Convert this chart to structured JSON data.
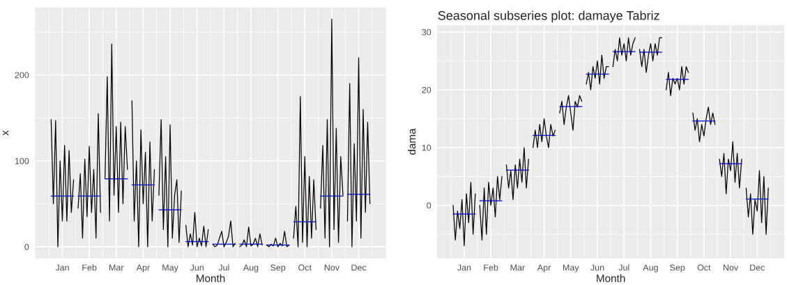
{
  "chart_data": [
    {
      "type": "line",
      "xlabel": "Month",
      "ylabel": "x",
      "ylim": [
        -13,
        278
      ],
      "yticks": [
        0,
        100,
        200
      ],
      "grid": true,
      "legend": false,
      "categories": [
        null,
        null,
        null,
        null,
        null,
        "Jan",
        null,
        null,
        null,
        null,
        null,
        null,
        null,
        null,
        null,
        null,
        null,
        "Feb",
        null,
        null,
        null,
        null,
        null,
        null,
        null,
        null,
        null,
        null,
        null,
        "Mar",
        null,
        null,
        null,
        null,
        null,
        null,
        null,
        null,
        null,
        null,
        null,
        "Apr",
        null,
        null,
        null,
        null,
        null,
        null,
        null,
        null,
        null,
        null,
        null,
        "May",
        null,
        null,
        null,
        null,
        null,
        null,
        null,
        null,
        null,
        null,
        null,
        "Jun",
        null,
        null,
        null,
        null,
        null,
        null,
        null,
        null,
        null,
        null,
        null,
        "Jul",
        null,
        null,
        null,
        null,
        null,
        null,
        null,
        null,
        null,
        null,
        null,
        "Aug",
        null,
        null,
        null,
        null,
        null,
        null,
        null,
        null,
        null,
        null,
        null,
        "Sep",
        null,
        null,
        null,
        null,
        null,
        null,
        null,
        null,
        null,
        null,
        null,
        "Oct",
        null,
        null,
        null,
        null,
        null,
        null,
        null,
        null,
        null,
        null,
        null,
        "Nov",
        null,
        null,
        null,
        null,
        null,
        null,
        null,
        null,
        null,
        null,
        null,
        "Dec",
        null,
        null,
        null,
        null,
        null
      ],
      "series": [
        {
          "color": "#000000",
          "values": [
            148,
            50,
            147,
            0,
            100,
            30,
            118,
            30,
            112,
            40,
            78,
            null,
            45,
            85,
            10,
            102,
            35,
            117,
            40,
            90,
            10,
            155,
            40,
            null,
            80,
            198,
            30,
            236,
            60,
            140,
            40,
            145,
            50,
            140,
            90,
            null,
            170,
            30,
            100,
            0,
            136,
            50,
            110,
            0,
            122,
            30,
            90,
            null,
            60,
            148,
            20,
            105,
            0,
            142,
            10,
            60,
            78,
            5,
            65,
            null,
            25,
            0,
            15,
            2,
            40,
            0,
            10,
            1,
            24,
            0,
            20,
            null,
            3,
            0,
            2,
            10,
            18,
            0,
            5,
            12,
            30,
            0,
            4,
            null,
            0,
            2,
            8,
            0,
            23,
            1,
            3,
            10,
            0,
            15,
            2,
            null,
            2,
            0,
            3,
            1,
            10,
            0,
            4,
            1,
            18,
            0,
            2,
            null,
            10,
            47,
            0,
            175,
            5,
            105,
            0,
            82,
            10,
            78,
            20,
            null,
            45,
            118,
            10,
            148,
            0,
            265,
            20,
            138,
            5,
            105,
            60,
            null,
            30,
            190,
            0,
            120,
            30,
            220,
            10,
            160,
            40,
            145,
            50
          ]
        },
        {
          "color": "#0000cc",
          "values": [
            59,
            59,
            59,
            59,
            59,
            59,
            59,
            59,
            59,
            59,
            59,
            null,
            59,
            59,
            59,
            59,
            59,
            59,
            59,
            59,
            59,
            59,
            59,
            null,
            79,
            79,
            79,
            79,
            79,
            79,
            79,
            79,
            79,
            79,
            79,
            null,
            72,
            72,
            72,
            72,
            72,
            72,
            72,
            72,
            72,
            72,
            72,
            null,
            43,
            43,
            43,
            43,
            43,
            43,
            43,
            43,
            43,
            43,
            43,
            null,
            6,
            6,
            6,
            6,
            6,
            6,
            6,
            6,
            6,
            6,
            6,
            null,
            3,
            3,
            3,
            3,
            3,
            3,
            3,
            3,
            3,
            3,
            3,
            null,
            3,
            3,
            3,
            3,
            3,
            3,
            3,
            3,
            3,
            3,
            3,
            null,
            2,
            2,
            2,
            2,
            2,
            2,
            2,
            2,
            2,
            2,
            2,
            null,
            29,
            29,
            29,
            29,
            29,
            29,
            29,
            29,
            29,
            29,
            29,
            null,
            59,
            59,
            59,
            59,
            59,
            59,
            59,
            59,
            59,
            59,
            59,
            null,
            61,
            61,
            61,
            61,
            61,
            61,
            61,
            61,
            61,
            61,
            61
          ]
        }
      ]
    },
    {
      "type": "line",
      "title": "Seasonal subseries plot: damaye Tabriz",
      "xlabel": "Month",
      "ylabel": "dama",
      "ylim": [
        -9.1,
        31.1
      ],
      "yticks": [
        0,
        10,
        20,
        30
      ],
      "grid": true,
      "legend": false,
      "categories": [
        null,
        null,
        null,
        null,
        null,
        "Jan",
        null,
        null,
        null,
        null,
        null,
        null,
        null,
        null,
        null,
        null,
        null,
        "Feb",
        null,
        null,
        null,
        null,
        null,
        null,
        null,
        null,
        null,
        null,
        null,
        "Mar",
        null,
        null,
        null,
        null,
        null,
        null,
        null,
        null,
        null,
        null,
        null,
        "Apr",
        null,
        null,
        null,
        null,
        null,
        null,
        null,
        null,
        null,
        null,
        null,
        "May",
        null,
        null,
        null,
        null,
        null,
        null,
        null,
        null,
        null,
        null,
        null,
        "Jun",
        null,
        null,
        null,
        null,
        null,
        null,
        null,
        null,
        null,
        null,
        null,
        "Jul",
        null,
        null,
        null,
        null,
        null,
        null,
        null,
        null,
        null,
        null,
        null,
        "Aug",
        null,
        null,
        null,
        null,
        null,
        null,
        null,
        null,
        null,
        null,
        null,
        "Sep",
        null,
        null,
        null,
        null,
        null,
        null,
        null,
        null,
        null,
        null,
        null,
        "Oct",
        null,
        null,
        null,
        null,
        null,
        null,
        null,
        null,
        null,
        null,
        null,
        "Nov",
        null,
        null,
        null,
        null,
        null,
        null,
        null,
        null,
        null,
        null,
        null,
        "Dec",
        null,
        null,
        null,
        null,
        null
      ],
      "series": [
        {
          "color": "#000000",
          "values": [
            0,
            -6,
            -1,
            -4,
            1,
            -7,
            2,
            -3,
            4,
            -5,
            2,
            null,
            0,
            -6,
            3,
            -5,
            4,
            0,
            3,
            -2,
            5,
            1,
            5,
            null,
            7,
            3,
            6,
            1,
            7,
            3,
            8,
            4,
            10,
            3,
            8,
            null,
            10,
            13,
            10,
            14,
            11,
            15,
            12,
            10,
            14,
            12,
            13,
            null,
            16,
            18,
            14,
            17,
            19,
            16,
            13,
            18,
            17,
            19,
            18,
            null,
            21,
            23,
            20,
            24,
            22,
            25,
            21,
            26,
            22,
            24,
            24,
            null,
            24,
            27,
            25,
            29,
            26,
            28,
            25,
            29,
            26,
            28,
            29,
            null,
            27,
            24,
            27,
            23,
            26,
            28,
            25,
            28,
            26,
            29,
            29,
            null,
            20,
            23,
            19,
            22,
            21,
            22,
            20,
            24,
            21,
            24,
            23,
            null,
            16,
            13,
            15,
            11,
            14,
            12,
            15,
            17,
            14,
            16,
            14,
            null,
            8,
            5,
            9,
            2,
            8,
            6,
            11,
            4,
            9,
            3,
            8,
            null,
            3,
            -2,
            2,
            -5,
            1,
            -1,
            6,
            -3,
            5,
            -5,
            3
          ]
        },
        {
          "color": "#0000cc",
          "values": [
            -1.5,
            -1.5,
            -1.5,
            -1.5,
            -1.5,
            -1.5,
            -1.5,
            -1.5,
            -1.5,
            -1.5,
            -1.5,
            null,
            0.8,
            0.8,
            0.8,
            0.8,
            0.8,
            0.8,
            0.8,
            0.8,
            0.8,
            0.8,
            0.8,
            null,
            6.1,
            6.1,
            6.1,
            6.1,
            6.1,
            6.1,
            6.1,
            6.1,
            6.1,
            6.1,
            6.1,
            null,
            12.1,
            12.1,
            12.1,
            12.1,
            12.1,
            12.1,
            12.1,
            12.1,
            12.1,
            12.1,
            12.1,
            null,
            17.1,
            17.1,
            17.1,
            17.1,
            17.1,
            17.1,
            17.1,
            17.1,
            17.1,
            17.1,
            17.1,
            null,
            22.7,
            22.7,
            22.7,
            22.7,
            22.7,
            22.7,
            22.7,
            22.7,
            22.7,
            22.7,
            22.7,
            null,
            26.6,
            26.6,
            26.6,
            26.6,
            26.6,
            26.6,
            26.6,
            26.6,
            26.6,
            26.6,
            26.6,
            null,
            26.5,
            26.5,
            26.5,
            26.5,
            26.5,
            26.5,
            26.5,
            26.5,
            26.5,
            26.5,
            26.5,
            null,
            21.8,
            21.8,
            21.8,
            21.8,
            21.8,
            21.8,
            21.8,
            21.8,
            21.8,
            21.8,
            21.8,
            null,
            14.6,
            14.6,
            14.6,
            14.6,
            14.6,
            14.6,
            14.6,
            14.6,
            14.6,
            14.6,
            14.6,
            null,
            7.2,
            7.2,
            7.2,
            7.2,
            7.2,
            7.2,
            7.2,
            7.2,
            7.2,
            7.2,
            7.2,
            null,
            1.1,
            1.1,
            1.1,
            1.1,
            1.1,
            1.1,
            1.1,
            1.1,
            1.1,
            1.1,
            1.1
          ]
        }
      ]
    }
  ]
}
